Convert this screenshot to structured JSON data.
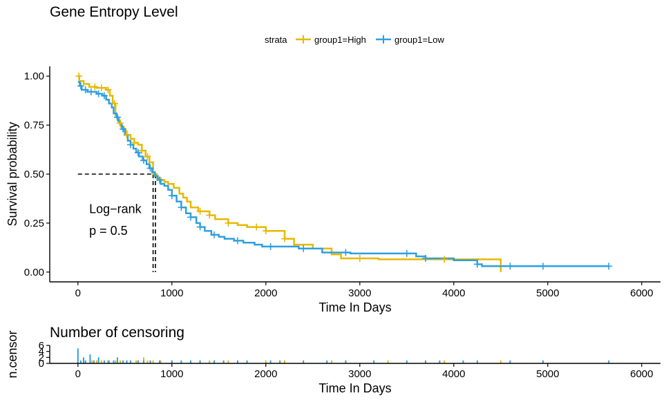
{
  "chart_data": [
    {
      "type": "line",
      "subtype": "kaplan-meier-step",
      "title": "Gene Entropy Level",
      "xlabel": "Time In Days",
      "ylabel": "Survival probability",
      "xlim": [
        -300,
        6200
      ],
      "ylim": [
        -0.05,
        1.05
      ],
      "x_ticks": [
        "0",
        "1000",
        "2000",
        "3000",
        "4000",
        "5000",
        "6000"
      ],
      "y_ticks": [
        "0.00",
        "0.25",
        "0.50",
        "0.75",
        "1.00"
      ],
      "grid": false,
      "legend": {
        "title": "strata",
        "placement": "top",
        "entries": [
          "group1=High",
          "group1=Low"
        ]
      },
      "annotation": {
        "line1": "Log−rank",
        "line2": "p = 0.5",
        "x": 120,
        "y1": 0.3,
        "y2": 0.19
      },
      "median_lines": {
        "y": 0.5,
        "x_values": [
          800,
          825
        ]
      },
      "colors": {
        "High": "#E7B800",
        "Low": "#2E9FDF"
      },
      "series": [
        {
          "name": "group1=High",
          "color": "#E7B800",
          "points": [
            [
              0,
              1.0
            ],
            [
              15,
              0.975
            ],
            [
              60,
              0.96
            ],
            [
              120,
              0.945
            ],
            [
              200,
              0.94
            ],
            [
              300,
              0.93
            ],
            [
              340,
              0.9
            ],
            [
              370,
              0.86
            ],
            [
              400,
              0.8
            ],
            [
              420,
              0.78
            ],
            [
              440,
              0.76
            ],
            [
              460,
              0.74
            ],
            [
              490,
              0.72
            ],
            [
              520,
              0.7
            ],
            [
              560,
              0.68
            ],
            [
              600,
              0.66
            ],
            [
              640,
              0.65
            ],
            [
              680,
              0.62
            ],
            [
              720,
              0.59
            ],
            [
              760,
              0.56
            ],
            [
              800,
              0.5
            ],
            [
              840,
              0.48
            ],
            [
              880,
              0.47
            ],
            [
              920,
              0.46
            ],
            [
              960,
              0.45
            ],
            [
              1020,
              0.43
            ],
            [
              1080,
              0.4
            ],
            [
              1120,
              0.38
            ],
            [
              1160,
              0.36
            ],
            [
              1200,
              0.33
            ],
            [
              1280,
              0.31
            ],
            [
              1400,
              0.29
            ],
            [
              1460,
              0.27
            ],
            [
              1600,
              0.25
            ],
            [
              1700,
              0.24
            ],
            [
              1800,
              0.23
            ],
            [
              2000,
              0.21
            ],
            [
              2200,
              0.17
            ],
            [
              2300,
              0.14
            ],
            [
              2500,
              0.12
            ],
            [
              2700,
              0.09
            ],
            [
              2800,
              0.07
            ],
            [
              3200,
              0.065
            ],
            [
              4500,
              0.0
            ]
          ],
          "censor_x": [
            10,
            180,
            250,
            320,
            390,
            450,
            520,
            600,
            680,
            740,
            1300,
            1400,
            1600,
            1900,
            2000,
            2200,
            3000,
            3900
          ]
        },
        {
          "name": "group1=Low",
          "color": "#2E9FDF",
          "points": [
            [
              0,
              0.97
            ],
            [
              20,
              0.95
            ],
            [
              40,
              0.93
            ],
            [
              100,
              0.92
            ],
            [
              200,
              0.91
            ],
            [
              260,
              0.9
            ],
            [
              300,
              0.88
            ],
            [
              330,
              0.86
            ],
            [
              360,
              0.84
            ],
            [
              380,
              0.81
            ],
            [
              410,
              0.79
            ],
            [
              430,
              0.77
            ],
            [
              450,
              0.75
            ],
            [
              470,
              0.73
            ],
            [
              500,
              0.7
            ],
            [
              530,
              0.67
            ],
            [
              560,
              0.65
            ],
            [
              590,
              0.63
            ],
            [
              620,
              0.61
            ],
            [
              650,
              0.59
            ],
            [
              690,
              0.57
            ],
            [
              730,
              0.55
            ],
            [
              760,
              0.53
            ],
            [
              790,
              0.51
            ],
            [
              820,
              0.49
            ],
            [
              850,
              0.47
            ],
            [
              880,
              0.45
            ],
            [
              920,
              0.44
            ],
            [
              960,
              0.42
            ],
            [
              1000,
              0.39
            ],
            [
              1050,
              0.36
            ],
            [
              1100,
              0.33
            ],
            [
              1150,
              0.3
            ],
            [
              1200,
              0.28
            ],
            [
              1260,
              0.25
            ],
            [
              1300,
              0.23
            ],
            [
              1350,
              0.21
            ],
            [
              1420,
              0.19
            ],
            [
              1500,
              0.18
            ],
            [
              1560,
              0.17
            ],
            [
              1660,
              0.16
            ],
            [
              1760,
              0.15
            ],
            [
              1880,
              0.14
            ],
            [
              1960,
              0.13
            ],
            [
              2100,
              0.13
            ],
            [
              2350,
              0.12
            ],
            [
              2600,
              0.1
            ],
            [
              2900,
              0.095
            ],
            [
              3600,
              0.08
            ],
            [
              3700,
              0.07
            ],
            [
              4000,
              0.06
            ],
            [
              4250,
              0.04
            ],
            [
              4300,
              0.03
            ],
            [
              5650,
              0.03
            ]
          ],
          "censor_x": [
            30,
            80,
            140,
            220,
            280,
            420,
            480,
            560,
            640,
            700,
            770,
            870,
            1000,
            1100,
            1200,
            1300,
            1450,
            1700,
            2050,
            2400,
            2850,
            3500,
            3700,
            4250,
            4600,
            4950,
            5650
          ]
        }
      ]
    },
    {
      "type": "bar",
      "title": "Number of censoring",
      "xlabel": "Time In Days",
      "ylabel": "n.censor",
      "xlim": [
        -300,
        6200
      ],
      "ylim": [
        0,
        6
      ],
      "x_ticks": [
        "0",
        "1000",
        "2000",
        "3000",
        "4000",
        "5000",
        "6000"
      ],
      "y_ticks": [
        "0",
        "2",
        "4",
        "6"
      ],
      "series": [
        {
          "name": "group1=High",
          "color": "#E7B800",
          "x": [
            150,
            200,
            250,
            320,
            400,
            450,
            520,
            620,
            700,
            740,
            800,
            880,
            1000,
            1300,
            1400,
            1600,
            2000,
            2200,
            2700,
            3300,
            3900,
            4500
          ],
          "values": [
            1,
            1,
            1,
            1,
            1,
            1,
            1,
            1,
            2,
            1,
            1,
            1,
            1,
            1,
            1,
            1,
            1,
            1,
            1,
            1,
            1,
            1
          ]
        },
        {
          "name": "group1=Low",
          "color": "#2E9FDF",
          "x": [
            0,
            30,
            60,
            80,
            130,
            170,
            220,
            280,
            330,
            380,
            420,
            480,
            520,
            560,
            640,
            700,
            770,
            870,
            1000,
            1100,
            1200,
            1300,
            1450,
            1550,
            1700,
            1800,
            2050,
            2150,
            2400,
            2650,
            2850,
            3150,
            3500,
            3700,
            3850,
            4100,
            4250,
            4600,
            4950,
            5650
          ],
          "values": [
            5,
            1,
            2,
            1,
            3,
            1,
            2,
            1,
            1,
            1,
            2,
            1,
            1,
            1,
            1,
            1,
            1,
            1,
            1,
            1,
            1,
            1,
            1,
            1,
            1,
            1,
            1,
            1,
            1,
            1,
            1,
            1,
            1,
            1,
            1,
            1,
            1,
            1,
            1,
            1
          ]
        }
      ]
    }
  ]
}
